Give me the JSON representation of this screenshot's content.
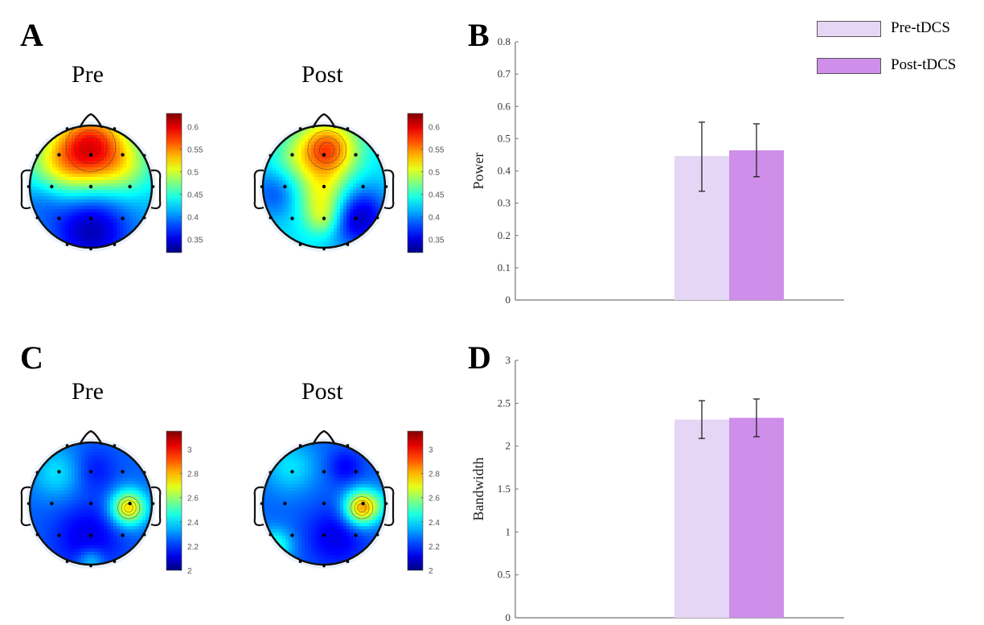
{
  "panels": {
    "A": {
      "label": "A",
      "pre_title": "Pre",
      "post_title": "Post"
    },
    "B": {
      "label": "B"
    },
    "C": {
      "label": "C",
      "pre_title": "Pre",
      "post_title": "Post"
    },
    "D": {
      "label": "D"
    }
  },
  "legend": [
    {
      "label": "Pre-tDCS",
      "color": "#e6d6f6"
    },
    {
      "label": "Post-tDCS",
      "color": "#cf8eea"
    }
  ],
  "colorbars": {
    "A": {
      "ticks": [
        "0.6",
        "0.55",
        "0.5",
        "0.45",
        "0.4",
        "0.35"
      ],
      "range": [
        0.32,
        0.63
      ]
    },
    "C": {
      "ticks": [
        "3",
        "2.8",
        "2.6",
        "2.4",
        "2.2",
        "2"
      ],
      "range": [
        2.0,
        3.15
      ]
    }
  },
  "chart_data": [
    {
      "type": "bar",
      "panel": "B",
      "title": "",
      "xlabel": "",
      "ylabel": "Power",
      "ylim": [
        0,
        0.8
      ],
      "yticks": [
        "0",
        "0.1",
        "0.2",
        "0.3",
        "0.4",
        "0.5",
        "0.6",
        "0.7",
        "0.8"
      ],
      "categories": [
        "Pre-tDCS",
        "Post-tDCS"
      ],
      "series": [
        {
          "name": "Pre-tDCS",
          "values": [
            0.446
          ],
          "error_low": [
            0.337
          ],
          "error_high": [
            0.551
          ],
          "color": "#e6d6f6"
        },
        {
          "name": "Post-tDCS",
          "values": [
            0.464
          ],
          "error_low": [
            0.382
          ],
          "error_high": [
            0.546
          ],
          "color": "#cf8eea"
        }
      ],
      "grid": false,
      "legend": "top-right"
    },
    {
      "type": "bar",
      "panel": "D",
      "title": "",
      "xlabel": "",
      "ylabel": "Bandwidth",
      "ylim": [
        0,
        3
      ],
      "yticks": [
        "0",
        "0.5",
        "1",
        "1.5",
        "2",
        "2.5",
        "3"
      ],
      "categories": [
        "Pre-tDCS",
        "Post-tDCS"
      ],
      "series": [
        {
          "name": "Pre-tDCS",
          "values": [
            2.31
          ],
          "error_low": [
            2.09
          ],
          "error_high": [
            2.53
          ],
          "color": "#e6d6f6"
        },
        {
          "name": "Post-tDCS",
          "values": [
            2.33
          ],
          "error_low": [
            2.11
          ],
          "error_high": [
            2.55
          ],
          "color": "#cf8eea"
        }
      ],
      "grid": false,
      "legend": "top-right"
    },
    {
      "type": "heatmap",
      "panel": "A",
      "title": "Pre / Post scalp topography (Power)",
      "colormap": "jet",
      "colorbar_range": [
        0.32,
        0.63
      ],
      "maps": [
        "Pre",
        "Post"
      ]
    },
    {
      "type": "heatmap",
      "panel": "C",
      "title": "Pre / Post scalp topography (Bandwidth)",
      "colormap": "jet",
      "colorbar_range": [
        2.0,
        3.15
      ],
      "maps": [
        "Pre",
        "Post"
      ]
    }
  ]
}
